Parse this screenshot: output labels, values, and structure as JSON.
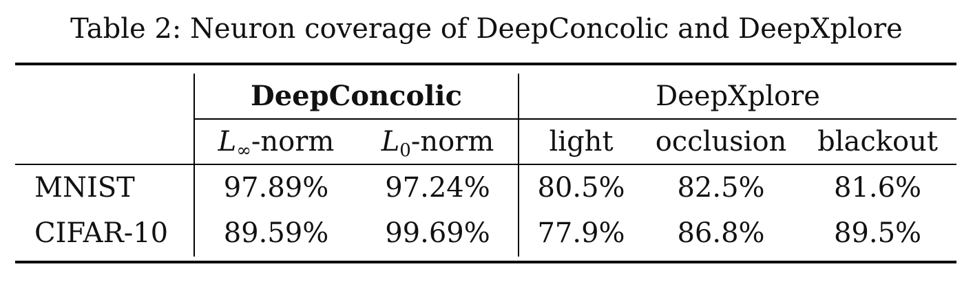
{
  "caption": "Table 2: Neuron coverage of DeepConcolic and DeepXplore",
  "groups": {
    "deepconcolic": "DeepConcolic",
    "deepxplore": "DeepXplore"
  },
  "columns": {
    "linf": {
      "base": "L",
      "sub": "∞",
      "suffix": "-norm"
    },
    "l0": {
      "base": "L",
      "sub": "0",
      "suffix": "-norm"
    },
    "light": "light",
    "occlusion": "occlusion",
    "blackout": "blackout"
  },
  "rows": [
    {
      "label": "MNIST",
      "linf": "97.89%",
      "l0": "97.24%",
      "light": "80.5%",
      "occlusion": "82.5%",
      "blackout": "81.6%"
    },
    {
      "label": "CIFAR-10",
      "linf": "89.59%",
      "l0": "99.69%",
      "light": "77.9%",
      "occlusion": "86.8%",
      "blackout": "89.5%"
    }
  ]
}
